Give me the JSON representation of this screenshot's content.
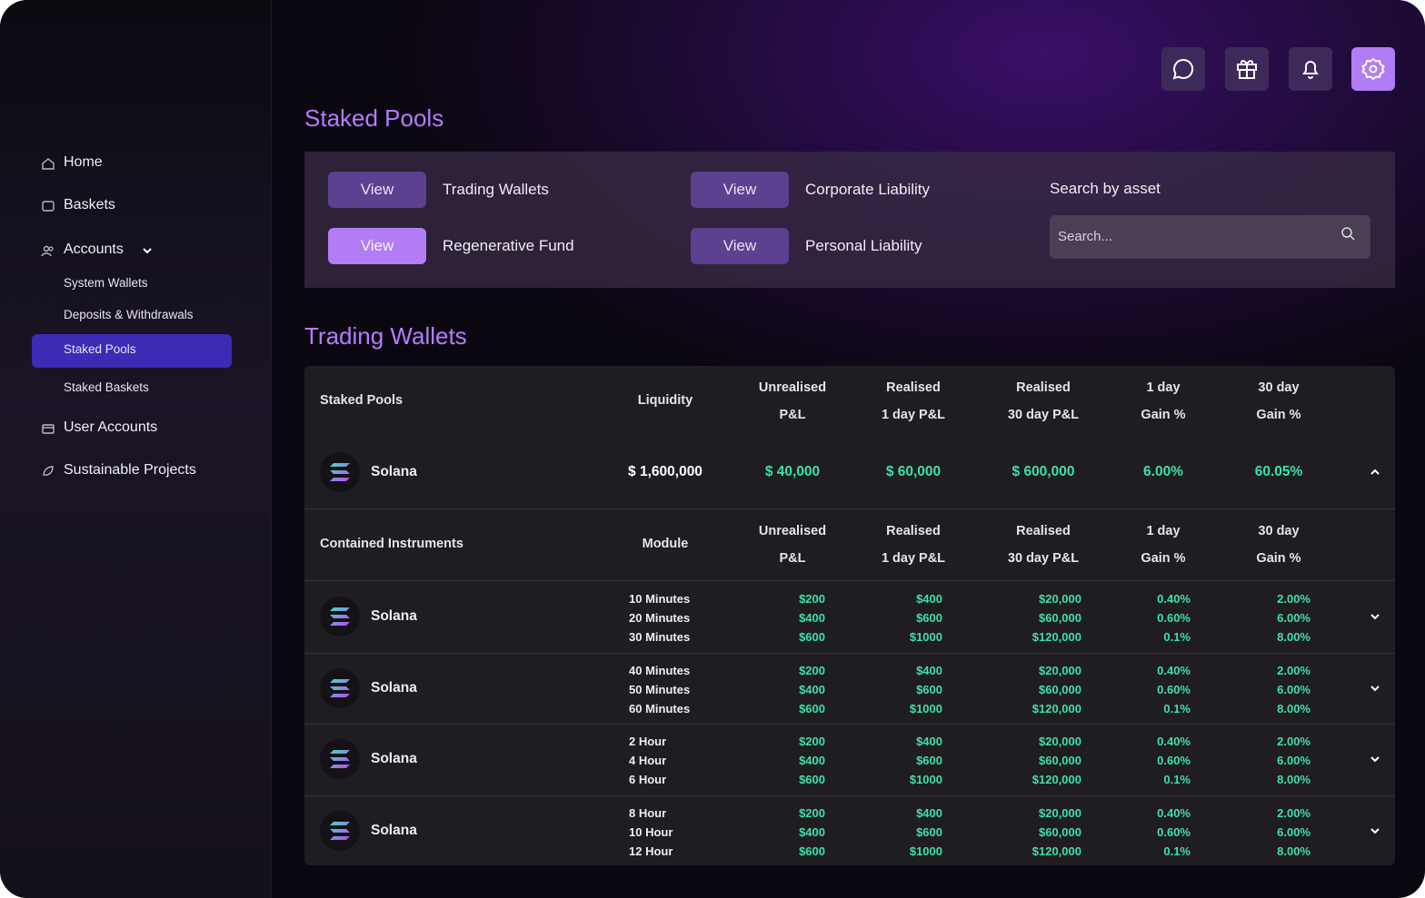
{
  "sidebar": {
    "nav": [
      "Home",
      "Baskets",
      "Accounts"
    ],
    "accounts_sub": [
      "System Wallets",
      "Deposits & Withdrawals",
      "Staked Pools",
      "Staked Baskets"
    ],
    "nav_more": [
      "User Accounts",
      "Sustainable Projects"
    ]
  },
  "page_title": "Staked Pools",
  "filters": [
    {
      "button": "View",
      "label": "Trading Wallets"
    },
    {
      "button": "View",
      "label": "Regenerative Fund"
    },
    {
      "button": "View",
      "label": "Corporate Liability"
    },
    {
      "button": "View",
      "label": "Personal Liability"
    }
  ],
  "search": {
    "label": "Search by asset",
    "placeholder": "Search..."
  },
  "section_title": "Trading Wallets",
  "pool_table": {
    "header": [
      [
        "Staked Pools"
      ],
      [
        "Liquidity"
      ],
      [
        "Unrealised",
        "P&L"
      ],
      [
        "Realised",
        "1 day P&L"
      ],
      [
        "Realised",
        "30 day P&L"
      ],
      [
        "1 day",
        "Gain %"
      ],
      [
        "30 day",
        "Gain %"
      ]
    ],
    "row": [
      "Solana",
      "$ 1,600,000",
      "$ 40,000",
      "$ 60,000",
      "$ 600,000",
      "6.00%",
      "60.05%"
    ]
  },
  "instruments": {
    "header": [
      [
        "Contained Instruments"
      ],
      [
        "Module"
      ],
      [
        "Unrealised",
        "P&L"
      ],
      [
        "Realised",
        "1 day P&L"
      ],
      [
        "Realised",
        "30 day P&L"
      ],
      [
        "1 day",
        "Gain %"
      ],
      [
        "30 day",
        "Gain %"
      ]
    ],
    "rows": [
      {
        "name": "Solana",
        "cells": [
          [
            "10 Minutes",
            "20 Minutes",
            "30 Minutes"
          ],
          [
            "$200",
            "$400",
            "$600"
          ],
          [
            "$400",
            "$600",
            "$1000"
          ],
          [
            "$20,000",
            "$60,000",
            "$120,000"
          ],
          [
            "0.40%",
            "0.60%",
            "0.1%"
          ],
          [
            "2.00%",
            "6.00%",
            "8.00%"
          ]
        ]
      },
      {
        "name": "Solana",
        "cells": [
          [
            "40 Minutes",
            "50 Minutes",
            "60 Minutes"
          ],
          [
            "$200",
            "$400",
            "$600"
          ],
          [
            "$400",
            "$600",
            "$1000"
          ],
          [
            "$20,000",
            "$60,000",
            "$120,000"
          ],
          [
            "0.40%",
            "0.60%",
            "0.1%"
          ],
          [
            "2.00%",
            "6.00%",
            "8.00%"
          ]
        ]
      },
      {
        "name": "Solana",
        "cells": [
          [
            "2 Hour",
            "4 Hour",
            "6 Hour"
          ],
          [
            "$200",
            "$400",
            "$600"
          ],
          [
            "$400",
            "$600",
            "$1000"
          ],
          [
            "$20,000",
            "$60,000",
            "$120,000"
          ],
          [
            "0.40%",
            "0.60%",
            "0.1%"
          ],
          [
            "2.00%",
            "6.00%",
            "8.00%"
          ]
        ]
      },
      {
        "name": "Solana",
        "cells": [
          [
            "8 Hour",
            "10 Hour",
            "12 Hour"
          ],
          [
            "$200",
            "$400",
            "$600"
          ],
          [
            "$400",
            "$600",
            "$1000"
          ],
          [
            "$20,000",
            "$60,000",
            "$120,000"
          ],
          [
            "0.40%",
            "0.60%",
            "0.1%"
          ],
          [
            "2.00%",
            "6.00%",
            "8.00%"
          ]
        ]
      }
    ]
  }
}
